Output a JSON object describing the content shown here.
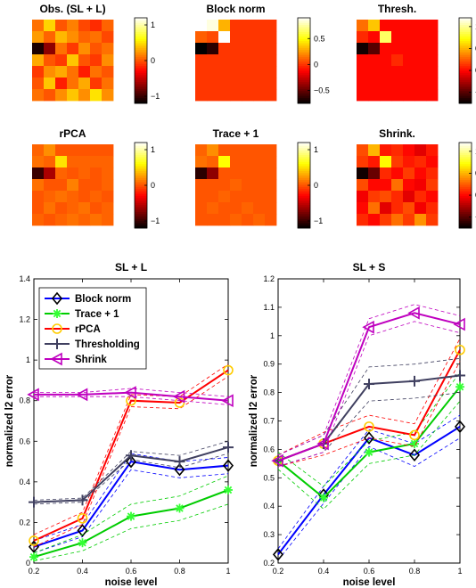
{
  "colors": {
    "block_norm": "#0000ff",
    "trace_plus_1": "#00cc00",
    "rpca": "#ff0000",
    "thresholding": "#404060",
    "shrink": "#bf00bf",
    "rpca_marker": "#ffcc00",
    "trace_marker": "#33ff33"
  },
  "chart_data": [
    {
      "type": "heatmap",
      "title": "Obs. (SL + L)",
      "colormap": "hot",
      "colorbar_ticks": [
        "1",
        "0",
        "−1"
      ],
      "colorbar_values": [
        1,
        0,
        -1
      ],
      "clim": [
        -1.2,
        1.2
      ],
      "grid": [
        [
          0.1,
          0.45,
          0.0,
          0.15,
          -0.05,
          -0.15,
          0.05
        ],
        [
          0.25,
          0.05,
          0.35,
          0.2,
          0.05,
          0.1,
          -0.05
        ],
        [
          -1.1,
          -0.7,
          0.1,
          -0.1,
          0.2,
          0.0,
          0.1
        ],
        [
          0.3,
          0.0,
          -0.1,
          0.4,
          0.0,
          -0.1,
          0.2
        ],
        [
          -0.1,
          0.2,
          0.3,
          0.1,
          -0.2,
          0.1,
          0.0
        ],
        [
          0.0,
          0.4,
          -0.2,
          0.1,
          0.3,
          -0.1,
          0.1
        ],
        [
          0.1,
          0.0,
          0.2,
          0.4,
          0.2,
          0.5,
          0.2
        ]
      ]
    },
    {
      "type": "heatmap",
      "title": "Block norm",
      "colormap": "hot",
      "colorbar_ticks": [
        "0.5",
        "0",
        "−0.5"
      ],
      "colorbar_values": [
        0.5,
        0,
        -0.5
      ],
      "clim": [
        -0.75,
        0.9
      ],
      "grid": [
        [
          0.9,
          0.85,
          0.3,
          0.0,
          0.0,
          0.0,
          0.0
        ],
        [
          0.1,
          0.05,
          0.9,
          0.0,
          0.0,
          0.0,
          0.0
        ],
        [
          -0.75,
          -0.65,
          0.0,
          0.0,
          0.0,
          0.0,
          0.0
        ],
        [
          0.0,
          0.0,
          0.0,
          0.0,
          0.0,
          0.0,
          0.0
        ],
        [
          0.0,
          0.0,
          0.0,
          0.0,
          0.0,
          0.0,
          0.0
        ],
        [
          0.0,
          0.0,
          0.0,
          0.0,
          0.0,
          0.0,
          0.0
        ],
        [
          0.0,
          0.0,
          0.0,
          0.0,
          0.0,
          0.0,
          0.0
        ]
      ]
    },
    {
      "type": "heatmap",
      "title": "Thresh.",
      "colormap": "hot",
      "colorbar_ticks": [
        "1",
        "0.5",
        "0",
        "−0.5"
      ],
      "colorbar_values": [
        1,
        0.5,
        0,
        -0.5
      ],
      "clim": [
        -0.75,
        1.2
      ],
      "grid": [
        [
          0.3,
          0.55,
          0.0,
          0.0,
          0.0,
          0.0,
          0.0
        ],
        [
          0.1,
          0.0,
          0.9,
          0.0,
          0.0,
          0.0,
          0.0
        ],
        [
          -0.7,
          -0.5,
          0.0,
          0.0,
          0.0,
          0.0,
          0.0
        ],
        [
          0.0,
          0.0,
          0.0,
          0.1,
          0.0,
          0.0,
          0.0
        ],
        [
          0.0,
          0.0,
          0.0,
          0.0,
          0.0,
          0.0,
          0.0
        ],
        [
          0.0,
          0.0,
          0.0,
          0.0,
          0.0,
          0.0,
          0.0
        ],
        [
          0.0,
          0.0,
          0.0,
          0.0,
          0.0,
          0.0,
          0.0
        ]
      ]
    },
    {
      "type": "heatmap",
      "title": "rPCA",
      "colormap": "hot",
      "colorbar_ticks": [
        "1",
        "0",
        "−1"
      ],
      "colorbar_values": [
        1,
        0,
        -1
      ],
      "clim": [
        -1.2,
        1.2
      ],
      "grid": [
        [
          0.05,
          0.2,
          0.0,
          0.0,
          0.0,
          0.0,
          0.0
        ],
        [
          0.1,
          0.05,
          0.5,
          0.05,
          0.05,
          0.05,
          0.05
        ],
        [
          -1.0,
          -0.6,
          0.05,
          0.0,
          0.05,
          0.0,
          0.05
        ],
        [
          0.1,
          0.0,
          0.0,
          0.15,
          0.0,
          0.0,
          0.05
        ],
        [
          0.0,
          0.05,
          0.1,
          0.05,
          0.0,
          0.05,
          0.0
        ],
        [
          0.0,
          0.1,
          0.0,
          0.05,
          0.1,
          0.0,
          0.05
        ],
        [
          0.05,
          0.0,
          0.05,
          0.1,
          0.05,
          0.1,
          0.05
        ]
      ]
    },
    {
      "type": "heatmap",
      "title": "Trace + 1",
      "colormap": "hot",
      "colorbar_ticks": [
        "1",
        "0",
        "−1"
      ],
      "colorbar_values": [
        1,
        0,
        -1
      ],
      "clim": [
        -1.2,
        1.2
      ],
      "grid": [
        [
          0.05,
          0.2,
          0.0,
          0.0,
          0.0,
          0.0,
          0.0
        ],
        [
          0.1,
          0.05,
          0.6,
          0.0,
          0.0,
          0.0,
          0.0
        ],
        [
          -1.05,
          -0.7,
          0.0,
          0.0,
          0.0,
          0.0,
          0.0
        ],
        [
          0.0,
          0.0,
          0.0,
          0.05,
          0.0,
          0.0,
          0.0
        ],
        [
          0.0,
          0.0,
          0.05,
          0.0,
          0.0,
          0.0,
          0.0
        ],
        [
          0.0,
          0.05,
          0.0,
          0.0,
          0.05,
          0.0,
          0.0
        ],
        [
          0.0,
          0.0,
          0.0,
          0.05,
          0.0,
          0.05,
          0.0
        ]
      ]
    },
    {
      "type": "heatmap",
      "title": "Shrink.",
      "colormap": "hot",
      "colorbar_ticks": [
        "1",
        "0.5",
        "0",
        "−0.5"
      ],
      "colorbar_values": [
        1,
        0.5,
        0,
        -0.5
      ],
      "clim": [
        -0.75,
        1.2
      ],
      "grid": [
        [
          0.2,
          0.5,
          0.05,
          0.1,
          0.0,
          -0.1,
          0.05
        ],
        [
          0.15,
          0.05,
          0.7,
          0.15,
          0.05,
          0.1,
          0.0
        ],
        [
          -0.7,
          -0.45,
          0.1,
          0.0,
          0.15,
          0.0,
          0.1
        ],
        [
          0.2,
          0.0,
          0.0,
          0.3,
          0.0,
          -0.05,
          0.15
        ],
        [
          -0.05,
          0.15,
          0.2,
          0.1,
          -0.1,
          0.1,
          0.0
        ],
        [
          0.0,
          0.3,
          -0.1,
          0.1,
          0.2,
          -0.05,
          0.1
        ],
        [
          0.1,
          0.0,
          0.15,
          0.3,
          0.15,
          0.4,
          0.15
        ]
      ]
    },
    {
      "type": "line",
      "title": "SL + L",
      "xlabel": "noise level",
      "ylabel": "normalized l2 error",
      "x": [
        0.2,
        0.4,
        0.6,
        0.8,
        1
      ],
      "xlim": [
        0.2,
        1
      ],
      "ylim": [
        0,
        1.4
      ],
      "xticks": [
        "0.2",
        "0.4",
        "0.6",
        "0.8",
        "1"
      ],
      "yticks": [
        "0",
        "0.2",
        "0.4",
        "0.6",
        "0.8",
        "1",
        "1.2",
        "1.4"
      ],
      "ytick_values": [
        0,
        0.2,
        0.4,
        0.6,
        0.8,
        1,
        1.2,
        1.4
      ],
      "legend": "top-left",
      "series": [
        {
          "name": "Block norm",
          "key": "block_norm",
          "marker": "diamond",
          "values": [
            0.08,
            0.16,
            0.5,
            0.46,
            0.48
          ],
          "band": [
            0.03,
            0.03,
            0.04,
            0.04,
            0.04
          ]
        },
        {
          "name": "Trace + 1",
          "key": "trace_plus_1",
          "marker": "asterisk",
          "values": [
            0.03,
            0.1,
            0.23,
            0.27,
            0.36
          ],
          "band": [
            0.02,
            0.04,
            0.06,
            0.06,
            0.07
          ]
        },
        {
          "name": "rPCA",
          "key": "rpca",
          "marker": "circle",
          "values": [
            0.11,
            0.22,
            0.8,
            0.79,
            0.95
          ],
          "band": [
            0.03,
            0.03,
            0.03,
            0.03,
            0.03
          ]
        },
        {
          "name": "Thresholding",
          "key": "thresholding",
          "marker": "plus",
          "values": [
            0.3,
            0.31,
            0.53,
            0.5,
            0.57
          ],
          "band": [
            0.01,
            0.01,
            0.02,
            0.03,
            0.03
          ]
        },
        {
          "name": "Shrink",
          "key": "shrink",
          "marker": "triangle-left",
          "values": [
            0.83,
            0.83,
            0.84,
            0.82,
            0.8
          ],
          "band": [
            0.01,
            0.01,
            0.02,
            0.02,
            0.02
          ]
        }
      ]
    },
    {
      "type": "line",
      "title": "SL + S",
      "xlabel": "noise level",
      "ylabel": "normalized l2 error",
      "x": [
        0.2,
        0.4,
        0.6,
        0.8,
        1
      ],
      "xlim": [
        0.2,
        1
      ],
      "ylim": [
        0.2,
        1.2
      ],
      "xticks": [
        "0.2",
        "0.4",
        "0.6",
        "0.8",
        "1"
      ],
      "yticks": [
        "0.2",
        "0.3",
        "0.4",
        "0.5",
        "0.6",
        "0.7",
        "0.8",
        "0.9",
        "1",
        "1.1",
        "1.2"
      ],
      "ytick_values": [
        0.2,
        0.3,
        0.4,
        0.5,
        0.6,
        0.7,
        0.8,
        0.9,
        1.0,
        1.1,
        1.2
      ],
      "series": [
        {
          "name": "Block norm",
          "key": "block_norm",
          "marker": "diamond",
          "values": [
            0.23,
            0.44,
            0.64,
            0.58,
            0.68
          ],
          "band": [
            0.02,
            0.03,
            0.03,
            0.04,
            0.04
          ]
        },
        {
          "name": "Trace + 1",
          "key": "trace_plus_1",
          "marker": "asterisk",
          "values": [
            0.56,
            0.43,
            0.59,
            0.62,
            0.82
          ],
          "band": [
            0.03,
            0.04,
            0.04,
            0.04,
            0.05
          ]
        },
        {
          "name": "rPCA",
          "key": "rpca",
          "marker": "circle",
          "values": [
            0.56,
            0.62,
            0.68,
            0.65,
            0.95
          ],
          "band": [
            0.02,
            0.04,
            0.04,
            0.04,
            0.04
          ]
        },
        {
          "name": "Thresholding",
          "key": "thresholding",
          "marker": "plus",
          "values": [
            0.56,
            0.62,
            0.83,
            0.84,
            0.86
          ],
          "band": [
            0.02,
            0.03,
            0.06,
            0.06,
            0.06
          ]
        },
        {
          "name": "Shrink",
          "key": "shrink",
          "marker": "triangle-left",
          "values": [
            0.56,
            0.62,
            1.03,
            1.08,
            1.04
          ],
          "band": [
            0.02,
            0.03,
            0.03,
            0.03,
            0.03
          ]
        }
      ]
    }
  ]
}
